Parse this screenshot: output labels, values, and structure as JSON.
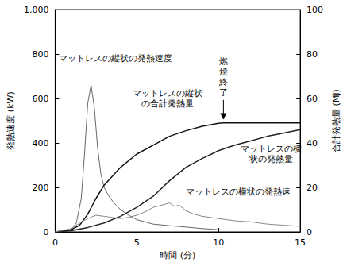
{
  "chart_data": {
    "type": "line",
    "grid": false,
    "x_label": "時間 (分)",
    "y_label": "発熱速度 (kW)",
    "y2_label": "合計発熱量 (MJ)",
    "xlim": [
      0,
      15
    ],
    "xticks": [
      0,
      5,
      10,
      15
    ],
    "ylim": [
      0,
      1000
    ],
    "yticks": [
      0,
      200,
      400,
      600,
      800,
      1000
    ],
    "y2lim": [
      0,
      100
    ],
    "y2ticks": [
      0,
      20,
      40,
      60,
      80,
      100
    ],
    "series": [
      {
        "name": "マットレスの縦状の発熱速度",
        "axis": "y",
        "color": "#666666",
        "line_style": "solid",
        "x": [
          0,
          0.5,
          1,
          1.3,
          1.6,
          1.8,
          2.0,
          2.2,
          2.4,
          2.6,
          2.8,
          3.0,
          3.3,
          3.6,
          4,
          4.5,
          5,
          5.5,
          6,
          7,
          8,
          9,
          10,
          10.3
        ],
        "values": [
          0,
          2,
          10,
          40,
          150,
          350,
          580,
          660,
          560,
          380,
          260,
          200,
          160,
          130,
          100,
          75,
          55,
          45,
          35,
          28,
          22,
          15,
          10,
          8
        ]
      },
      {
        "name": "マットレスの縦状の合計発熱量",
        "axis": "y2",
        "color": "#111111",
        "line_style": "solid",
        "x": [
          0,
          1,
          1.5,
          2,
          2.5,
          3,
          3.5,
          4,
          5,
          6,
          7,
          8,
          9,
          10,
          10.3,
          12,
          15
        ],
        "values": [
          0,
          1,
          3,
          8,
          15,
          21,
          25,
          29,
          35,
          39,
          43,
          45.5,
          47.5,
          48.8,
          49,
          49,
          49
        ]
      },
      {
        "name": "マットレスの横状の発熱量",
        "axis": "y2",
        "color": "#222222",
        "line_style": "solid",
        "x": [
          0,
          1,
          2,
          3,
          4,
          5,
          6,
          7,
          8,
          9,
          10,
          11,
          12,
          13,
          14,
          15
        ],
        "values": [
          0,
          0.5,
          2,
          4,
          7,
          11,
          16,
          23,
          29,
          33,
          36.5,
          39,
          41,
          43,
          44.5,
          46
        ]
      },
      {
        "name": "マットレスの横状の発熱速",
        "axis": "y",
        "color": "#888888",
        "line_style": "solid",
        "x": [
          0,
          1,
          1.5,
          2,
          2.5,
          3,
          3.5,
          4,
          4.5,
          5,
          5.5,
          6,
          6.5,
          7,
          7.3,
          7.6,
          8,
          8.5,
          9,
          9.5,
          10,
          11,
          12,
          13,
          14,
          15
        ],
        "values": [
          0,
          15,
          40,
          60,
          75,
          70,
          65,
          60,
          65,
          75,
          90,
          110,
          120,
          130,
          115,
          120,
          95,
          80,
          70,
          65,
          60,
          50,
          45,
          35,
          30,
          25
        ]
      }
    ],
    "annotations": [
      {
        "text": "マットレスの縦状の発熱速度",
        "x": 3.7,
        "y": 780
      },
      {
        "text": "マットレスの縦状\nの合計発熱量",
        "x": 6.9,
        "y": 600
      },
      {
        "text": "燃焼終了",
        "x": 10.3,
        "y": 790,
        "vertical": true,
        "arrow_y": 505
      },
      {
        "text": "マットレスの横\n状の発熱量",
        "x": 13.2,
        "y": 350
      },
      {
        "text": "マットレスの横状の発熱速",
        "x": 11.2,
        "y": 180
      }
    ]
  }
}
